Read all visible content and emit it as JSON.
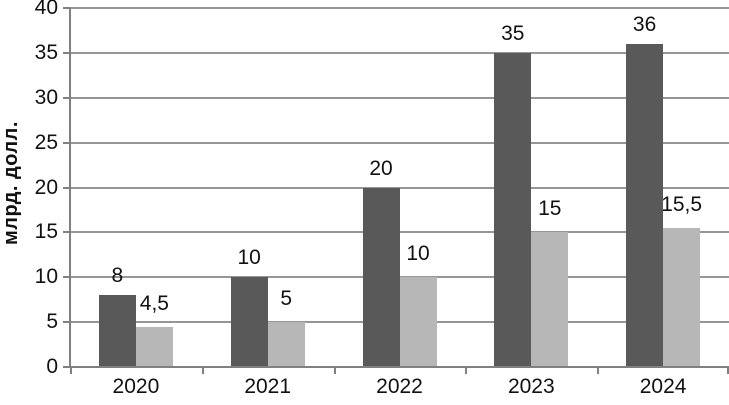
{
  "chart_data": {
    "type": "bar",
    "categories": [
      "2020",
      "2021",
      "2022",
      "2023",
      "2024"
    ],
    "series": [
      {
        "name": "dark-gray-series",
        "color": "#595959",
        "values": [
          8,
          10,
          20,
          35,
          36
        ],
        "labels": [
          "8",
          "10",
          "20",
          "35",
          "36"
        ]
      },
      {
        "name": "light-gray-series",
        "color": "#b7b7b7",
        "values": [
          4.5,
          5,
          10,
          15,
          15.5
        ],
        "labels": [
          "4,5",
          "5",
          "10",
          "15",
          "15,5"
        ]
      }
    ],
    "title": "",
    "xlabel": "",
    "ylabel": "млрд. долл.",
    "ylim": [
      0,
      40
    ],
    "ytick_step": 5,
    "yticks": [
      "0",
      "5",
      "10",
      "15",
      "20",
      "25",
      "30",
      "35",
      "40"
    ],
    "grid": true,
    "legend_position": "none"
  },
  "colors": {
    "grid": "#969696",
    "axis": "#808080",
    "text": "#111111",
    "background": "#ffffff"
  }
}
